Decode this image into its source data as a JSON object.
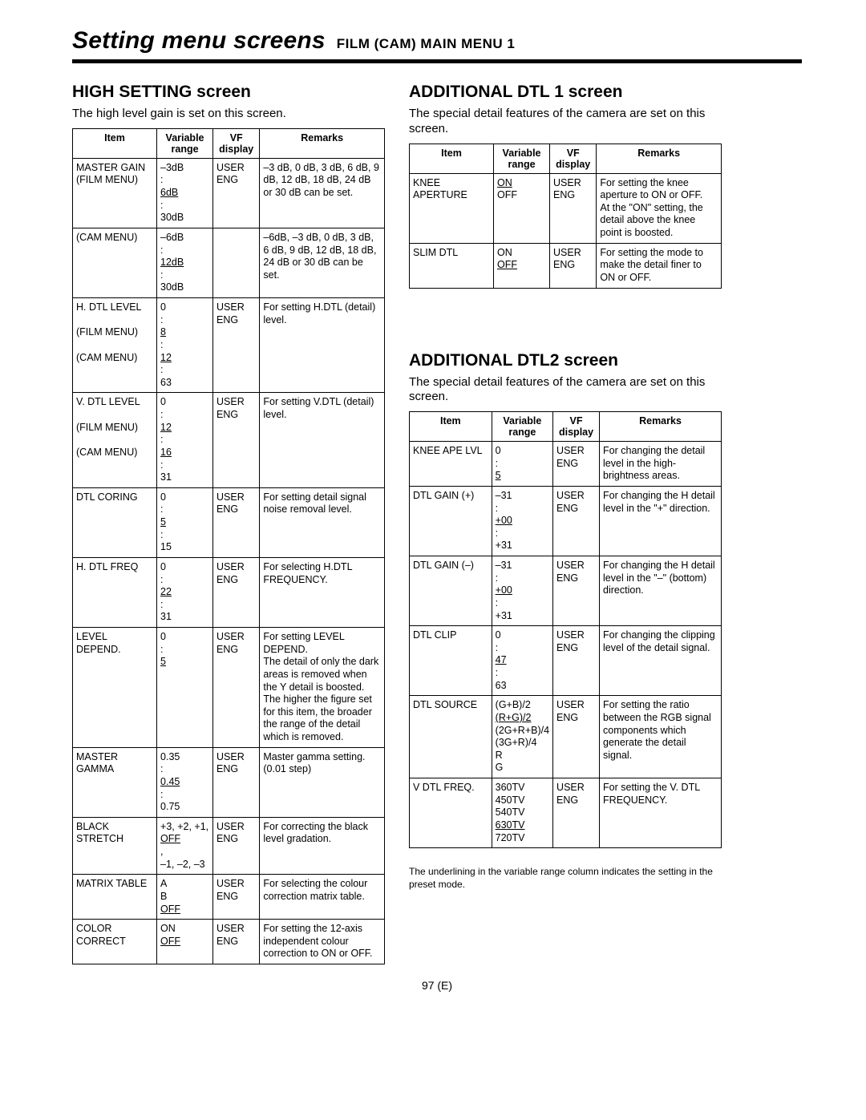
{
  "page": {
    "title": "Setting menu screens",
    "subtitle": "FILM (CAM) MAIN MENU 1",
    "page_number": "97 (E)",
    "footnote": "The underlining in the variable range column indicates the setting in the preset mode."
  },
  "headers": {
    "item": "Item",
    "range": "Variable range",
    "vf": "VF display",
    "remarks": "Remarks"
  },
  "high_setting": {
    "heading": "HIGH SETTING screen",
    "note": "The high level gain is set on this screen.",
    "rows": [
      {
        "item": [
          "MASTER GAIN",
          "(FILM MENU)"
        ],
        "range": [
          "–3dB",
          ":",
          {
            "u": "6dB"
          },
          ":",
          "30dB"
        ],
        "vf": [
          "USER",
          "ENG"
        ],
        "remarks": [
          "–3 dB, 0 dB, 3 dB, 6 dB, 9 dB, 12 dB, 18 dB, 24 dB or 30 dB can be set."
        ],
        "dashed_bottom": true
      },
      {
        "item": [
          "(CAM MENU)"
        ],
        "range": [
          "–6dB",
          ":",
          {
            "u": "12dB"
          },
          ":",
          "30dB"
        ],
        "vf": [],
        "remarks": [
          "–6dB, –3 dB, 0 dB, 3 dB, 6 dB, 9 dB, 12 dB, 18 dB, 24 dB or 30 dB can be set."
        ],
        "dashed_top": true
      },
      {
        "item": [
          "H. DTL LEVEL",
          "",
          "(FILM MENU)",
          "",
          "(CAM MENU)"
        ],
        "range": [
          "0",
          ":",
          {
            "u": "8"
          },
          ":",
          {
            "u": "12"
          },
          ":",
          "63"
        ],
        "vf": [
          "USER",
          "ENG"
        ],
        "remarks": [
          "For setting H.DTL (detail) level."
        ]
      },
      {
        "item": [
          "V. DTL LEVEL",
          "",
          "(FILM MENU)",
          "",
          "(CAM MENU)"
        ],
        "range": [
          "0",
          ":",
          {
            "u": "12"
          },
          ":",
          {
            "u": "16"
          },
          ":",
          "31"
        ],
        "vf": [
          "USER",
          "ENG"
        ],
        "remarks": [
          "For setting V.DTL (detail) level."
        ]
      },
      {
        "item": [
          "DTL CORING"
        ],
        "range": [
          "0",
          ":",
          {
            "u": "5"
          },
          ":",
          "15"
        ],
        "vf": [
          "USER",
          "ENG"
        ],
        "remarks": [
          "For setting detail signal noise removal level."
        ]
      },
      {
        "item": [
          "H. DTL FREQ"
        ],
        "range": [
          "0",
          ":",
          {
            "u": "22"
          },
          ":",
          "31"
        ],
        "vf": [
          "USER",
          "ENG"
        ],
        "remarks": [
          "For selecting H.DTL FREQUENCY."
        ]
      },
      {
        "item": [
          "LEVEL DEPEND."
        ],
        "range": [
          "0",
          ":",
          {
            "u": "5"
          }
        ],
        "vf": [
          "USER",
          "ENG"
        ],
        "remarks": [
          "For setting LEVEL DEPEND.",
          "The detail of only the dark areas is removed when the Y detail is boosted.",
          "The higher the figure set for this item, the broader the range of the detail which is removed."
        ]
      },
      {
        "item": [
          "MASTER",
          "GAMMA"
        ],
        "range": [
          "0.35",
          ":",
          {
            "u": "0.45"
          },
          ":",
          "0.75"
        ],
        "vf": [
          "USER",
          "ENG"
        ],
        "remarks": [
          "Master gamma setting.",
          "(0.01 step)"
        ]
      },
      {
        "item": [
          "BLACK",
          "STRETCH"
        ],
        "range": [
          "+3, +2, +1,",
          {
            "u": "OFF"
          },
          ",",
          "–1, –2, –3"
        ],
        "vf": [
          "USER",
          "ENG"
        ],
        "remarks": [
          "For correcting the black level gradation."
        ]
      },
      {
        "item": [
          "MATRIX TABLE"
        ],
        "range": [
          "A",
          "B",
          {
            "u": "OFF"
          }
        ],
        "vf": [
          "USER",
          "ENG"
        ],
        "remarks": [
          "For selecting the colour correction matrix table."
        ]
      },
      {
        "item": [
          "COLOR",
          "CORRECT"
        ],
        "range": [
          "ON",
          {
            "u": "OFF"
          }
        ],
        "vf": [
          "USER",
          "ENG"
        ],
        "remarks": [
          "For setting the 12-axis independent colour correction to ON or OFF."
        ]
      }
    ]
  },
  "add_dtl1": {
    "heading": "ADDITIONAL DTL 1 screen",
    "note": "The special detail features of the camera are set on this screen.",
    "rows": [
      {
        "item": [
          "KNEE",
          "APERTURE"
        ],
        "range": [
          {
            "u": "ON"
          },
          "OFF"
        ],
        "vf": [
          "USER",
          "ENG"
        ],
        "remarks": [
          "For setting the knee aperture to ON or OFF.",
          "At the \"ON\" setting, the detail above the knee point is boosted."
        ]
      },
      {
        "item": [
          "SLIM DTL"
        ],
        "range": [
          "ON",
          {
            "u": "OFF"
          }
        ],
        "vf": [
          "USER",
          "ENG"
        ],
        "remarks": [
          "For setting the mode to make the detail finer to ON or OFF."
        ]
      }
    ]
  },
  "add_dtl2": {
    "heading": "ADDITIONAL DTL2 screen",
    "note": "The special detail features of the camera are set on this screen.",
    "rows": [
      {
        "item": [
          "KNEE APE LVL"
        ],
        "range": [
          "0",
          ":",
          {
            "u": "5"
          }
        ],
        "vf": [
          "USER",
          "ENG"
        ],
        "remarks": [
          "For changing the detail level in the high-brightness areas."
        ]
      },
      {
        "item": [
          "DTL GAIN (+)"
        ],
        "range": [
          "–31",
          ":",
          {
            "u": "+00"
          },
          ":",
          "+31"
        ],
        "vf": [
          "USER",
          "ENG"
        ],
        "remarks": [
          "For changing the H detail level in the \"+\" direction."
        ]
      },
      {
        "item": [
          "DTL GAIN (–)"
        ],
        "range": [
          "–31",
          ":",
          {
            "u": "+00"
          },
          ":",
          "+31"
        ],
        "vf": [
          "USER",
          "ENG"
        ],
        "remarks": [
          "For changing the H detail level in the \"–\" (bottom) direction."
        ]
      },
      {
        "item": [
          "DTL CLIP"
        ],
        "range": [
          "0",
          ":",
          {
            "u": "47"
          },
          ":",
          "63"
        ],
        "vf": [
          "USER",
          "ENG"
        ],
        "remarks": [
          "For changing the clipping level of the detail signal."
        ]
      },
      {
        "item": [
          "DTL SOURCE"
        ],
        "range": [
          "(G+B)/2",
          {
            "u": "(R+G)/2"
          },
          "(2G+R+B)/4",
          "(3G+R)/4",
          "R",
          "G"
        ],
        "vf": [
          "USER",
          "ENG"
        ],
        "remarks": [
          "For setting the ratio between the RGB signal components which generate the detail signal."
        ]
      },
      {
        "item": [
          "V DTL FREQ."
        ],
        "range": [
          "360TV",
          "450TV",
          "540TV",
          {
            "u": "630TV"
          },
          "720TV"
        ],
        "vf": [
          "USER",
          "ENG"
        ],
        "remarks": [
          "For setting the V. DTL FREQUENCY."
        ]
      }
    ]
  }
}
